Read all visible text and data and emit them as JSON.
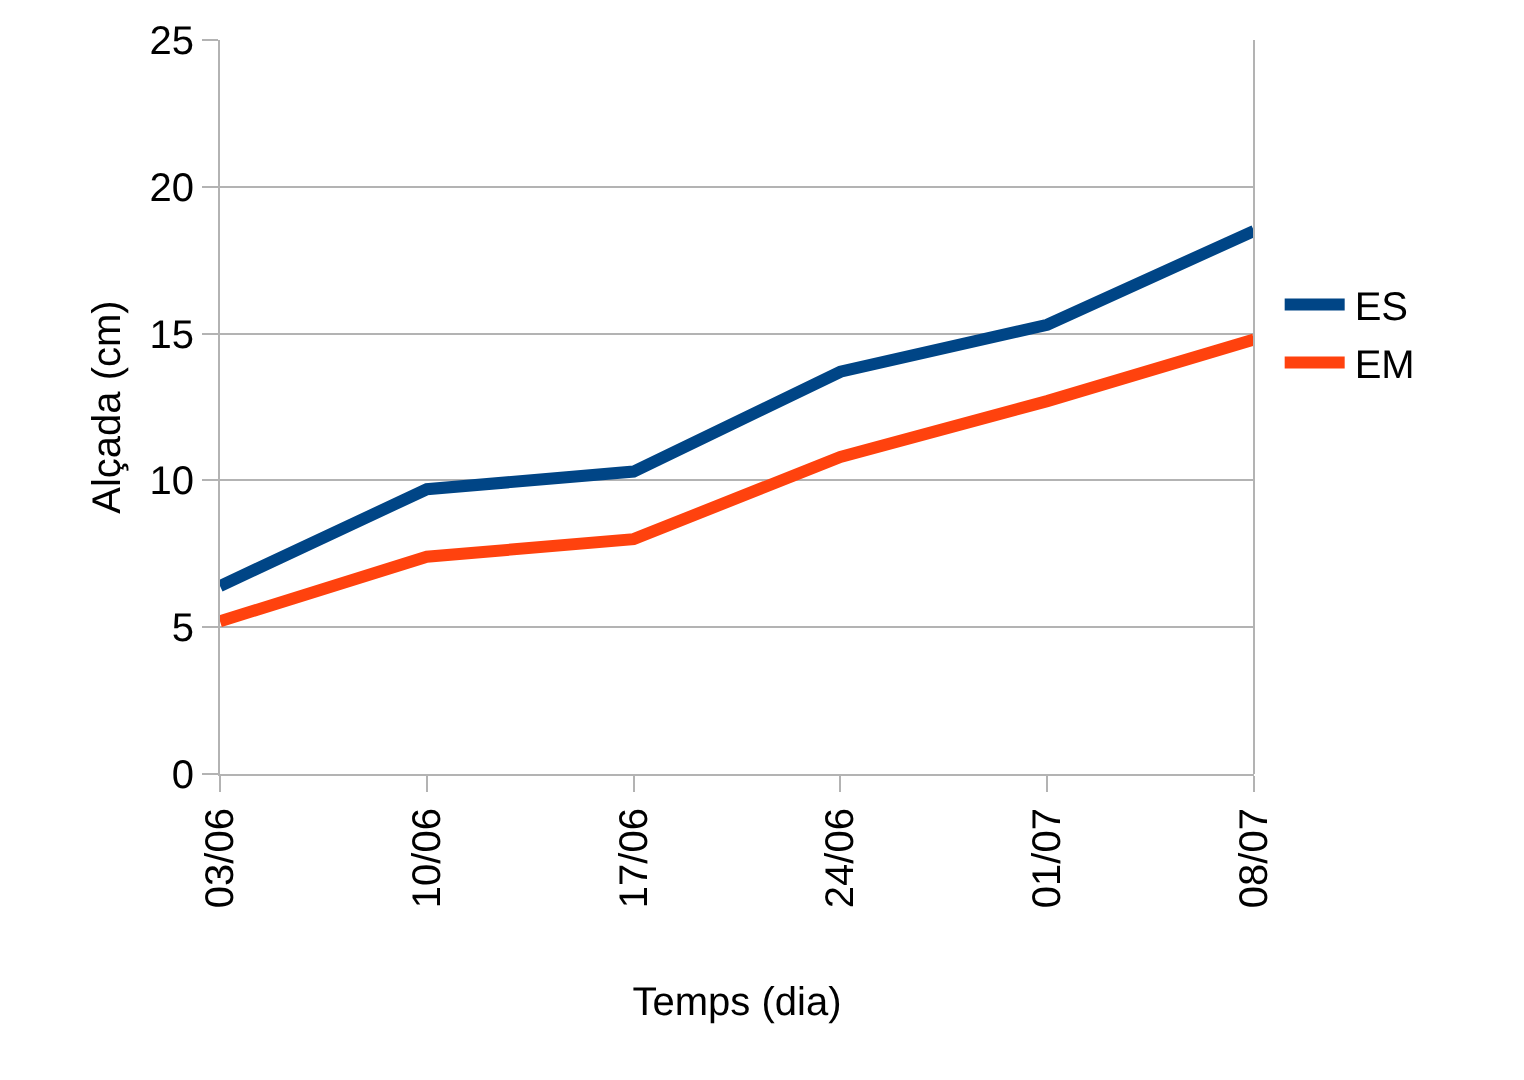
{
  "chart_data": {
    "type": "line",
    "xlabel": "Temps (dia)",
    "ylabel": "Alçada (cm)",
    "categories": [
      "03/06",
      "10/06",
      "17/06",
      "24/06",
      "01/07",
      "08/07"
    ],
    "series": [
      {
        "name": "ES",
        "color": "#004586",
        "values": [
          6.4,
          9.7,
          10.3,
          13.7,
          15.3,
          18.5
        ]
      },
      {
        "name": "EM",
        "color": "#ff420e",
        "values": [
          5.2,
          7.4,
          8.0,
          10.8,
          12.7,
          14.8
        ]
      }
    ],
    "ylim": [
      0,
      25
    ],
    "yticks": [
      0,
      5,
      10,
      15,
      20,
      25
    ],
    "grid": "y",
    "legend": "right",
    "marker": "none",
    "line_style": "solid"
  }
}
